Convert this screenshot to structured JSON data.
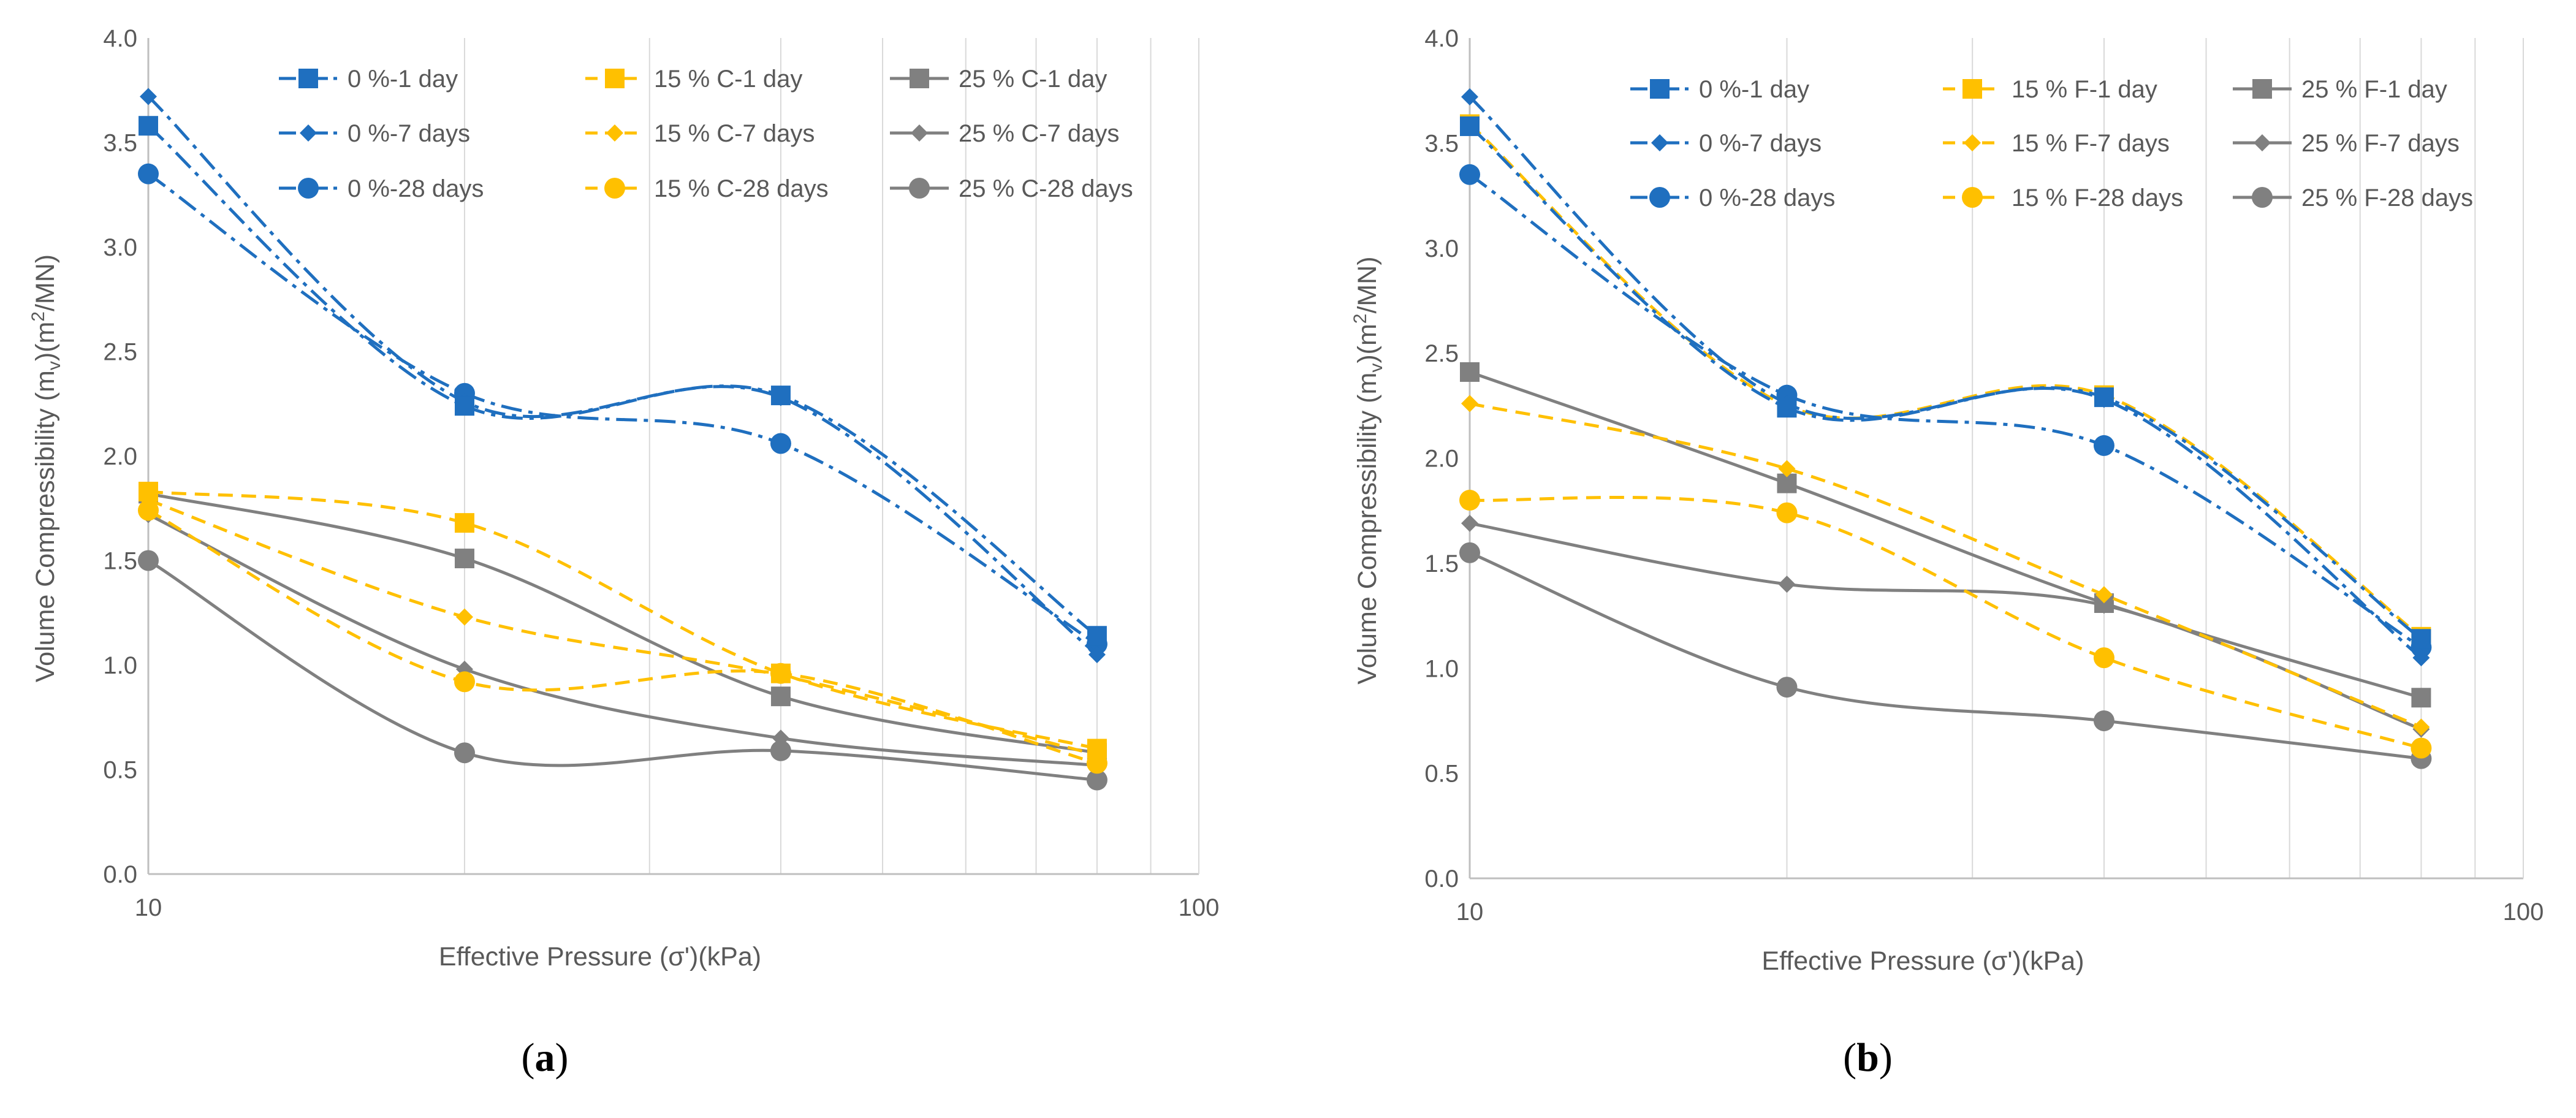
{
  "chart_data": [
    {
      "type": "line",
      "panel_label": "(a)",
      "panel_letter": "a",
      "title": "",
      "xlabel": "Effective Pressure (σ')(kPa)",
      "ylabel_parts": [
        "Volume Compressibility (m",
        "v",
        ")(m",
        "2",
        "/MN)"
      ],
      "xscale": "log",
      "xlim": [
        10,
        100
      ],
      "ylim": [
        0,
        4
      ],
      "x_ticks": [
        10,
        100
      ],
      "x_tick_labels": [
        "10",
        "100"
      ],
      "y_ticks": [
        0,
        0.5,
        1,
        1.5,
        2,
        2.5,
        3,
        3.5,
        4
      ],
      "y_tick_labels": [
        "0.0",
        "0.5",
        "1.0",
        "1.5",
        "2.0",
        "2.5",
        "3.0",
        "3.5",
        "4.0"
      ],
      "grid": "vertical-log",
      "legend": "top, 3 columns",
      "x": [
        10,
        20,
        40,
        80
      ],
      "series": [
        {
          "name": "0 %-1 day",
          "values": [
            3.58,
            2.24,
            2.29,
            1.14
          ],
          "color": "#1f6fbf",
          "dash": "dashdot",
          "marker": "square"
        },
        {
          "name": "0 %-7 days",
          "values": [
            3.72,
            2.26,
            2.28,
            1.05
          ],
          "color": "#1f6fbf",
          "dash": "dashdot",
          "marker": "diamond"
        },
        {
          "name": "0 %-28 days",
          "values": [
            3.35,
            2.3,
            2.06,
            1.1
          ],
          "color": "#1f6fbf",
          "dash": "dashdot",
          "marker": "circle"
        },
        {
          "name": "15 % C-1 day",
          "values": [
            1.83,
            1.68,
            0.96,
            0.6
          ],
          "color": "#ffc000",
          "dash": "dash",
          "marker": "square"
        },
        {
          "name": "15 % C-7 days",
          "values": [
            1.79,
            1.23,
            0.95,
            0.57
          ],
          "color": "#ffc000",
          "dash": "dash",
          "marker": "diamond"
        },
        {
          "name": "15 % C-28 days",
          "values": [
            1.74,
            0.92,
            0.96,
            0.53
          ],
          "color": "#ffc000",
          "dash": "dash",
          "marker": "circle"
        },
        {
          "name": "25 % C-1 day",
          "values": [
            1.82,
            1.51,
            0.85,
            0.58
          ],
          "color": "#808080",
          "dash": "solid",
          "marker": "square"
        },
        {
          "name": "25 % C-7 days",
          "values": [
            1.72,
            0.98,
            0.65,
            0.52
          ],
          "color": "#808080",
          "dash": "solid",
          "marker": "diamond"
        },
        {
          "name": "25 % C-28 days",
          "values": [
            1.5,
            0.58,
            0.59,
            0.45
          ],
          "color": "#808080",
          "dash": "solid",
          "marker": "circle"
        }
      ]
    },
    {
      "type": "line",
      "panel_label": "(b)",
      "panel_letter": "b",
      "title": "",
      "xlabel": "Effective Pressure (σ')(kPa)",
      "ylabel_parts": [
        "Volume Compressibility (m",
        "v",
        ")(m",
        "2",
        "/MN)"
      ],
      "xscale": "log",
      "xlim": [
        10,
        100
      ],
      "ylim": [
        0,
        4
      ],
      "x_ticks": [
        10,
        100
      ],
      "x_tick_labels": [
        "10",
        "100"
      ],
      "y_ticks": [
        0,
        0.5,
        1,
        1.5,
        2,
        2.5,
        3,
        3.5,
        4
      ],
      "y_tick_labels": [
        "0.0",
        "0.5",
        "1.0",
        "1.5",
        "2.0",
        "2.5",
        "3.0",
        "3.5",
        "4.0"
      ],
      "grid": "vertical-log",
      "legend": "top, 3 columns",
      "x": [
        10,
        20,
        40,
        80
      ],
      "series": [
        {
          "name": "0 %-1 day",
          "values": [
            3.58,
            2.24,
            2.29,
            1.14
          ],
          "color": "#1f6fbf",
          "dash": "dashdot",
          "marker": "square"
        },
        {
          "name": "0 %-7 days",
          "values": [
            3.72,
            2.26,
            2.28,
            1.05
          ],
          "color": "#1f6fbf",
          "dash": "dashdot",
          "marker": "diamond"
        },
        {
          "name": "0 %-28 days",
          "values": [
            3.35,
            2.3,
            2.06,
            1.1
          ],
          "color": "#1f6fbf",
          "dash": "dashdot",
          "marker": "circle"
        },
        {
          "name": "15 % F-1 day",
          "values": [
            3.59,
            2.25,
            2.3,
            1.15
          ],
          "color": "#ffc000",
          "dash": "dash",
          "marker": "square"
        },
        {
          "name": "15 % F-7 days",
          "values": [
            2.26,
            1.95,
            1.35,
            0.72
          ],
          "color": "#ffc000",
          "dash": "dash",
          "marker": "diamond"
        },
        {
          "name": "15 % F-28 days",
          "values": [
            1.8,
            1.74,
            1.05,
            0.62
          ],
          "color": "#ffc000",
          "dash": "dash",
          "marker": "circle"
        },
        {
          "name": "25 % F-1 day",
          "values": [
            2.41,
            1.88,
            1.31,
            0.86
          ],
          "color": "#808080",
          "dash": "solid",
          "marker": "square"
        },
        {
          "name": "25 % F-7 days",
          "values": [
            1.69,
            1.4,
            1.3,
            0.71
          ],
          "color": "#808080",
          "dash": "solid",
          "marker": "diamond"
        },
        {
          "name": "25 % F-28 days",
          "values": [
            1.55,
            0.91,
            0.75,
            0.57
          ],
          "color": "#808080",
          "dash": "solid",
          "marker": "circle"
        }
      ]
    }
  ]
}
